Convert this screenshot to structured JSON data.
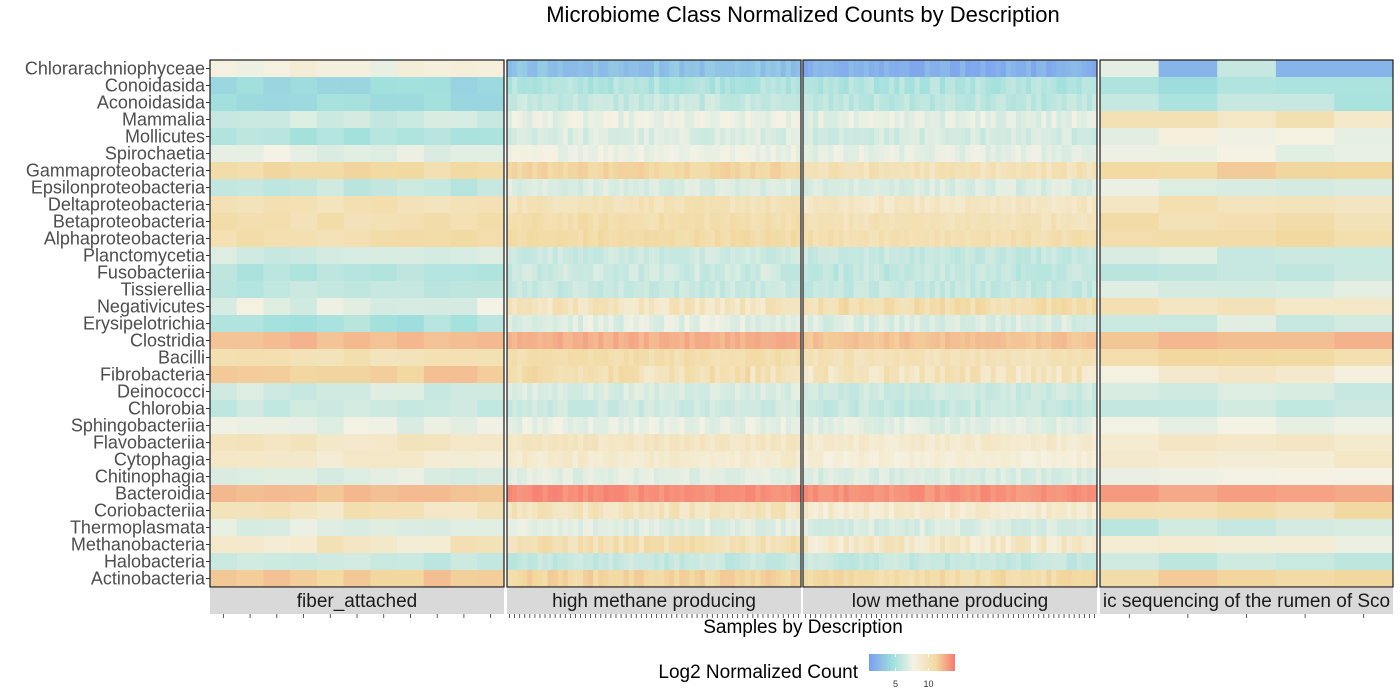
{
  "chart_data": {
    "type": "heatmap",
    "title": "Microbiome Class Normalized Counts by Description",
    "xlabel": "Samples by Description",
    "ylabel": "",
    "legend": {
      "title": "Log2 Normalized Count",
      "ticks": [
        5,
        10
      ],
      "range": [
        1,
        14
      ],
      "placement": "bottom"
    },
    "colors": {
      "low": "#7b9ef0",
      "mid_low": "#a0e0dd",
      "mid": "#f5f2e4",
      "mid_high": "#f2d9a0",
      "high": "#f7786e"
    },
    "rows": [
      {
        "name": "Chlorarachniophyceae",
        "base": [
          7.0,
          3.0,
          2.0,
          6.0
        ],
        "noise": 0.6
      },
      {
        "name": "Conoidasida",
        "base": [
          4.2,
          5.0,
          5.0,
          4.8
        ],
        "noise": 0.5
      },
      {
        "name": "Aconoidasida",
        "base": [
          4.3,
          5.6,
          5.3,
          5.2
        ],
        "noise": 0.5
      },
      {
        "name": "Mammalia",
        "base": [
          5.8,
          6.6,
          6.4,
          8.4
        ],
        "noise": 0.5
      },
      {
        "name": "Mollicutes",
        "base": [
          5.0,
          6.2,
          6.0,
          6.8
        ],
        "noise": 0.5
      },
      {
        "name": "Spirochaetia",
        "base": [
          6.6,
          6.8,
          6.5,
          6.8
        ],
        "noise": 0.4
      },
      {
        "name": "Gammaproteobacteria",
        "base": [
          9.3,
          9.6,
          8.6,
          9.6
        ],
        "noise": 0.5
      },
      {
        "name": "Epsilonproteobacteria",
        "base": [
          5.5,
          6.2,
          6.2,
          6.4
        ],
        "noise": 0.4
      },
      {
        "name": "Deltaproteobacteria",
        "base": [
          8.6,
          8.6,
          8.1,
          8.6
        ],
        "noise": 0.4
      },
      {
        "name": "Betaproteobacteria",
        "base": [
          8.9,
          9.0,
          8.6,
          9.0
        ],
        "noise": 0.4
      },
      {
        "name": "Alphaproteobacteria",
        "base": [
          9.0,
          9.2,
          8.9,
          9.1
        ],
        "noise": 0.4
      },
      {
        "name": "Planctomycetia",
        "base": [
          6.0,
          5.8,
          5.6,
          6.0
        ],
        "noise": 0.4
      },
      {
        "name": "Fusobacteriia",
        "base": [
          5.2,
          5.8,
          5.5,
          5.6
        ],
        "noise": 0.5
      },
      {
        "name": "Tissierellia",
        "base": [
          5.4,
          5.7,
          5.6,
          6.2
        ],
        "noise": 0.4
      },
      {
        "name": "Negativicutes",
        "base": [
          6.6,
          8.4,
          9.0,
          8.6
        ],
        "noise": 0.7
      },
      {
        "name": "Erysipelotrichia",
        "base": [
          4.8,
          6.4,
          6.2,
          6.0
        ],
        "noise": 0.5
      },
      {
        "name": "Clostridia",
        "base": [
          10.6,
          11.2,
          10.4,
          10.6
        ],
        "noise": 0.5
      },
      {
        "name": "Bacilli",
        "base": [
          8.8,
          9.0,
          8.6,
          9.2
        ],
        "noise": 0.4
      },
      {
        "name": "Fibrobacteria",
        "base": [
          9.8,
          8.8,
          8.4,
          7.8
        ],
        "noise": 0.9
      },
      {
        "name": "Deinococci",
        "base": [
          6.0,
          6.2,
          5.8,
          6.0
        ],
        "noise": 0.4
      },
      {
        "name": "Chlorobia",
        "base": [
          5.6,
          5.8,
          5.6,
          5.8
        ],
        "noise": 0.4
      },
      {
        "name": "Sphingobacteriia",
        "base": [
          6.6,
          6.6,
          6.4,
          6.6
        ],
        "noise": 0.4
      },
      {
        "name": "Flavobacteriia",
        "base": [
          8.2,
          8.2,
          7.8,
          8.0
        ],
        "noise": 0.4
      },
      {
        "name": "Cytophagia",
        "base": [
          7.8,
          7.8,
          7.4,
          7.8
        ],
        "noise": 0.4
      },
      {
        "name": "Chitinophagia",
        "base": [
          6.4,
          6.4,
          6.2,
          6.6
        ],
        "noise": 0.4
      },
      {
        "name": "Bacteroidia",
        "base": [
          10.6,
          12.6,
          12.4,
          11.8
        ],
        "noise": 0.5
      },
      {
        "name": "Coriobacteriia",
        "base": [
          8.4,
          8.4,
          7.8,
          9.0
        ],
        "noise": 0.6
      },
      {
        "name": "Thermoplasmata",
        "base": [
          6.2,
          6.4,
          6.2,
          5.8
        ],
        "noise": 0.5
      },
      {
        "name": "Methanobacteria",
        "base": [
          8.2,
          8.8,
          8.0,
          7.2
        ],
        "noise": 0.7
      },
      {
        "name": "Halobacteria",
        "base": [
          5.6,
          5.6,
          5.6,
          5.6
        ],
        "noise": 0.4
      },
      {
        "name": "Actinobacteria",
        "base": [
          10.0,
          9.6,
          9.2,
          9.6
        ],
        "noise": 0.6
      }
    ],
    "facets": [
      {
        "label": "fiber_attached",
        "n_samples": 11
      },
      {
        "label": "high methane producing",
        "n_samples": 58
      },
      {
        "label": "low methane producing",
        "n_samples": 58
      },
      {
        "label": "ic sequencing of the rumen of Sco",
        "n_samples": 5
      }
    ]
  }
}
